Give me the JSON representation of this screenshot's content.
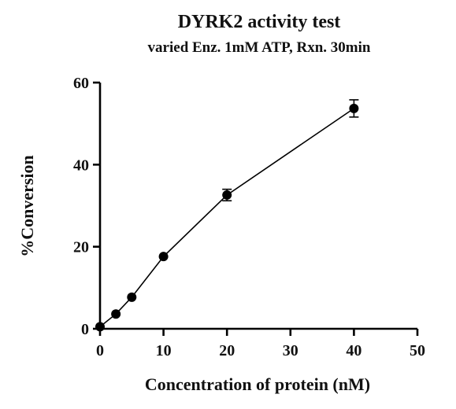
{
  "chart_data": {
    "type": "scatter",
    "title": "DYRK2 activity test",
    "subtitle": "varied Enz. 1mM ATP, Rxn. 30min",
    "xlabel": "Concentration of protein (nM)",
    "ylabel": "%Conversion",
    "xlim": [
      0,
      50
    ],
    "ylim": [
      0,
      60
    ],
    "xticks": [
      0,
      10,
      20,
      30,
      40,
      50
    ],
    "yticks": [
      0,
      20,
      40,
      60
    ],
    "xtick_labels": [
      "0",
      "10",
      "20",
      "30",
      "40",
      "50"
    ],
    "ytick_labels": [
      "0",
      "20",
      "40",
      "60"
    ],
    "grid": false,
    "legend": "none",
    "series": [
      {
        "x": [
          0,
          2.5,
          5,
          10,
          20,
          40
        ],
        "y": [
          0.5,
          3.6,
          7.7,
          17.6,
          32.6,
          53.7
        ],
        "yerr": [
          0,
          0.3,
          0.3,
          0.3,
          1.4,
          2.1
        ],
        "marker": "circle",
        "line": "connected",
        "color": "#000000"
      }
    ]
  }
}
